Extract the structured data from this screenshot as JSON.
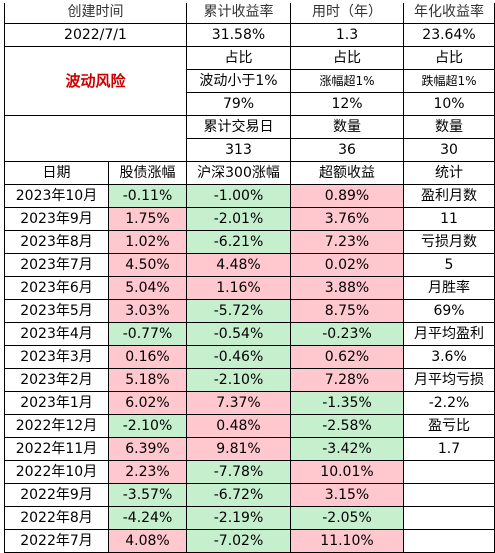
{
  "summary": {
    "headers": [
      "创建时间",
      "累计收益率",
      "用时（年）",
      "年化收益率"
    ],
    "values": [
      "2022/7/1",
      "31.58%",
      "1.3",
      "23.64%"
    ]
  },
  "risk": {
    "label": "波动风险",
    "ratio_rows": [
      [
        "占比",
        "占比",
        "占比"
      ],
      [
        "波动小于1%",
        "涨幅超1%",
        "跌幅超1%"
      ],
      [
        "79%",
        "12%",
        "10%"
      ],
      [
        "累计交易日",
        "数量",
        "数量"
      ],
      [
        "313",
        "36",
        "30"
      ]
    ]
  },
  "monthly": {
    "headers": [
      "日期",
      "股债涨幅",
      "沪深300涨幅",
      "超额收益",
      "统计"
    ],
    "rows": [
      {
        "date": "2023年10月",
        "bond": "-0.11%",
        "hs300": "-1.00%",
        "excess": "0.89%",
        "stat": "盈利月数"
      },
      {
        "date": "2023年9月",
        "bond": "1.75%",
        "hs300": "-2.01%",
        "excess": "3.76%",
        "stat": "11"
      },
      {
        "date": "2023年8月",
        "bond": "1.02%",
        "hs300": "-6.21%",
        "excess": "7.23%",
        "stat": "亏损月数"
      },
      {
        "date": "2023年7月",
        "bond": "4.50%",
        "hs300": "4.48%",
        "excess": "0.02%",
        "stat": "5"
      },
      {
        "date": "2023年6月",
        "bond": "5.04%",
        "hs300": "1.16%",
        "excess": "3.88%",
        "stat": "月胜率"
      },
      {
        "date": "2023年5月",
        "bond": "3.03%",
        "hs300": "-5.72%",
        "excess": "8.75%",
        "stat": "69%"
      },
      {
        "date": "2023年4月",
        "bond": "-0.77%",
        "hs300": "-0.54%",
        "excess": "-0.23%",
        "stat": "月平均盈利"
      },
      {
        "date": "2023年3月",
        "bond": "0.16%",
        "hs300": "-0.46%",
        "excess": "0.62%",
        "stat": "3.6%"
      },
      {
        "date": "2023年2月",
        "bond": "5.18%",
        "hs300": "-2.10%",
        "excess": "7.28%",
        "stat": "月平均亏损"
      },
      {
        "date": "2023年1月",
        "bond": "6.02%",
        "hs300": "7.37%",
        "excess": "-1.35%",
        "stat": "-2.2%"
      },
      {
        "date": "2022年12月",
        "bond": "-2.10%",
        "hs300": "0.48%",
        "excess": "-2.58%",
        "stat": "盈亏比"
      },
      {
        "date": "2022年11月",
        "bond": "6.39%",
        "hs300": "9.81%",
        "excess": "-3.42%",
        "stat": "1.7"
      },
      {
        "date": "2022年10月",
        "bond": "2.23%",
        "hs300": "-7.78%",
        "excess": "10.01%",
        "stat": ""
      },
      {
        "date": "2022年9月",
        "bond": "-3.57%",
        "hs300": "-6.72%",
        "excess": "3.15%",
        "stat": ""
      },
      {
        "date": "2022年8月",
        "bond": "-4.24%",
        "hs300": "-2.19%",
        "excess": "-2.05%",
        "stat": ""
      },
      {
        "date": "2022年7月",
        "bond": "4.08%",
        "hs300": "-7.02%",
        "excess": "11.10%",
        "stat": ""
      }
    ]
  },
  "colors": {
    "positive_fill": "#ffc7ce",
    "negative_fill": "#c6efce",
    "risk_text": "#cc0000"
  }
}
